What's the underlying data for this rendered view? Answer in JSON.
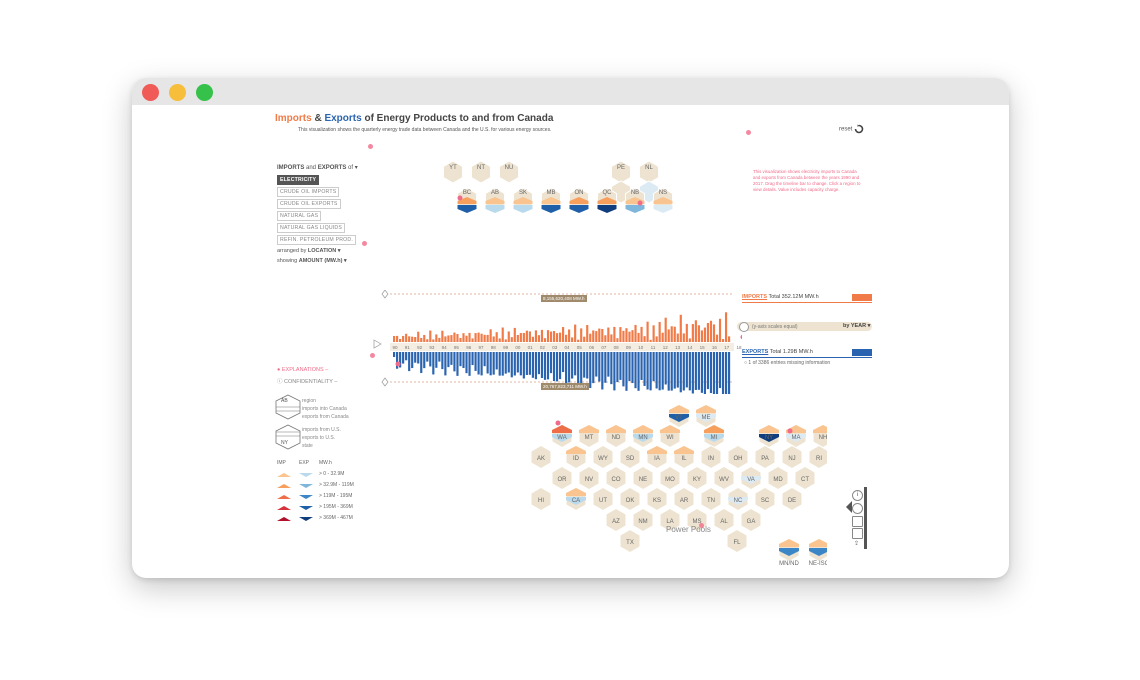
{
  "window": {
    "traffic_lights": [
      {
        "name": "close",
        "color": "#f05a57"
      },
      {
        "name": "minimize",
        "color": "#f6be3a"
      },
      {
        "name": "maximize",
        "color": "#35c14a"
      }
    ]
  },
  "header": {
    "title_imports": "Imports",
    "title_amp": " & ",
    "title_exports": "Exports",
    "title_rest": " of Energy Products to and from Canada",
    "subtitle": "This visualization shows the quarterly energy trade data between Canada and the U.S. for various energy sources.",
    "reset_label": "reset"
  },
  "info_panel": {
    "text": "This visualization shows electricity imports to Canada and exports from Canada between the years 1990 and 2017. Drag the timeline bar to change. Click a region to view details. Value includes capacity charge."
  },
  "menu": {
    "heading_imports": "IMPORTS",
    "heading_and": " and ",
    "heading_exports": "EXPORTS",
    "heading_of": " of ▾",
    "products": [
      "ELECTRICITY",
      "CRUDE OIL IMPORTS",
      "CRUDE OIL EXPORTS",
      "NATURAL GAS",
      "NATURAL GAS LIQUIDS",
      "REFIN. PETROLEUM PROD."
    ],
    "active_product": "ELECTRICITY",
    "arranged_prefix": "arranged by ",
    "arranged_value": "LOCATION ▾",
    "showing_prefix": "showing ",
    "showing_value": "AMOUNT (MW.h) ▾"
  },
  "canada_hexes": {
    "top_row": [
      "YT",
      "NT",
      "NU",
      "PE",
      "NL"
    ],
    "bottom_row": [
      "BC",
      "AB",
      "SK",
      "MB",
      "ON",
      "QC",
      "NB",
      "NS"
    ]
  },
  "timeline": {
    "max_label": "8,155,620,408 MW.h",
    "min_label": "20,767,823,711 MW.h",
    "years": [
      "90",
      "91",
      "92",
      "93",
      "94",
      "95",
      "96",
      "97",
      "98",
      "99",
      "00",
      "01",
      "02",
      "03",
      "04",
      "05",
      "06",
      "07",
      "08",
      "09",
      "10",
      "11",
      "12",
      "13",
      "14",
      "15",
      "16",
      "17",
      "18"
    ],
    "scale_note": "(y-axis scales equal)",
    "by_year": "by YEAR ▾",
    "imports_heading": "IMPORTS",
    "imports_total": "Total 352.12M MW.h",
    "exports_heading": "EXPORTS",
    "exports_total": "Total 1.29B MW.h",
    "missing_note": "1 of 3386 entries missing information",
    "imports_color": "#f07b48",
    "exports_color": "#2a64b0"
  },
  "explanations": {
    "explanations_label": "EXPLANATIONS",
    "confidentiality_label": "CONFIDENTIALITY",
    "region_abbr": "AB",
    "region_label": "region",
    "imports_into": "imports into Canada",
    "exports_from": "exports from Canada",
    "state_abbr": "NY",
    "imports_us": "imports from U.S.",
    "exports_us": "exports to U.S.",
    "state_label": "state"
  },
  "legend": {
    "col_imp": "IMP",
    "col_exp": "EXP",
    "col_unit": "MW.h",
    "rows": [
      {
        "range": "> 0    -   32.9M",
        "imp": "#f9c48f",
        "exp": "#b9d9ec"
      },
      {
        "range": "> 32.9M  -   119M",
        "imp": "#f7a05e",
        "exp": "#7fb6dc"
      },
      {
        "range": "> 119M  -   195M",
        "imp": "#ef6e4a",
        "exp": "#3b86c6"
      },
      {
        "range": "> 195M  -   369M",
        "imp": "#d8333a",
        "exp": "#1f5fa8"
      },
      {
        "range": "> 369M  -   467M",
        "imp": "#b2102a",
        "exp": "#0f3d7e"
      }
    ]
  },
  "us_hexes": [
    {
      "label": "VT"
    },
    {
      "label": "ME"
    },
    {
      "label": "WA"
    },
    {
      "label": "MT"
    },
    {
      "label": "ND"
    },
    {
      "label": "MN"
    },
    {
      "label": "WI"
    },
    {
      "label": "MI"
    },
    {
      "label": "NY"
    },
    {
      "label": "MA"
    },
    {
      "label": "NH"
    },
    {
      "label": "AK"
    },
    {
      "label": "ID"
    },
    {
      "label": "WY"
    },
    {
      "label": "SD"
    },
    {
      "label": "IA"
    },
    {
      "label": "IL"
    },
    {
      "label": "IN"
    },
    {
      "label": "OH"
    },
    {
      "label": "PA"
    },
    {
      "label": "NJ"
    },
    {
      "label": "RI"
    },
    {
      "label": "OR"
    },
    {
      "label": "NV"
    },
    {
      "label": "CO"
    },
    {
      "label": "NE"
    },
    {
      "label": "MO"
    },
    {
      "label": "KY"
    },
    {
      "label": "WV"
    },
    {
      "label": "VA"
    },
    {
      "label": "MD"
    },
    {
      "label": "CT"
    },
    {
      "label": "HI"
    },
    {
      "label": "CA"
    },
    {
      "label": "UT"
    },
    {
      "label": "OK"
    },
    {
      "label": "KS"
    },
    {
      "label": "AR"
    },
    {
      "label": "TN"
    },
    {
      "label": "NC"
    },
    {
      "label": "SC"
    },
    {
      "label": "DE"
    },
    {
      "label": "AZ"
    },
    {
      "label": "NM"
    },
    {
      "label": "LA"
    },
    {
      "label": "MS"
    },
    {
      "label": "AL"
    },
    {
      "label": "GA"
    },
    {
      "label": "TX"
    },
    {
      "label": "FL"
    }
  ],
  "power_pools": {
    "title": "Power Pools",
    "pools": [
      "MN/ND",
      "NE-ISO",
      "PJM"
    ]
  },
  "toolbar": {
    "icons": [
      "info-icon",
      "circle-icon",
      "copy-icon",
      "save-icon",
      "share-icon"
    ]
  },
  "colors": {
    "hex_fill": "#ede3d0",
    "hex_stroke": "#ffffff",
    "grid_dash": "#d9a08a"
  }
}
